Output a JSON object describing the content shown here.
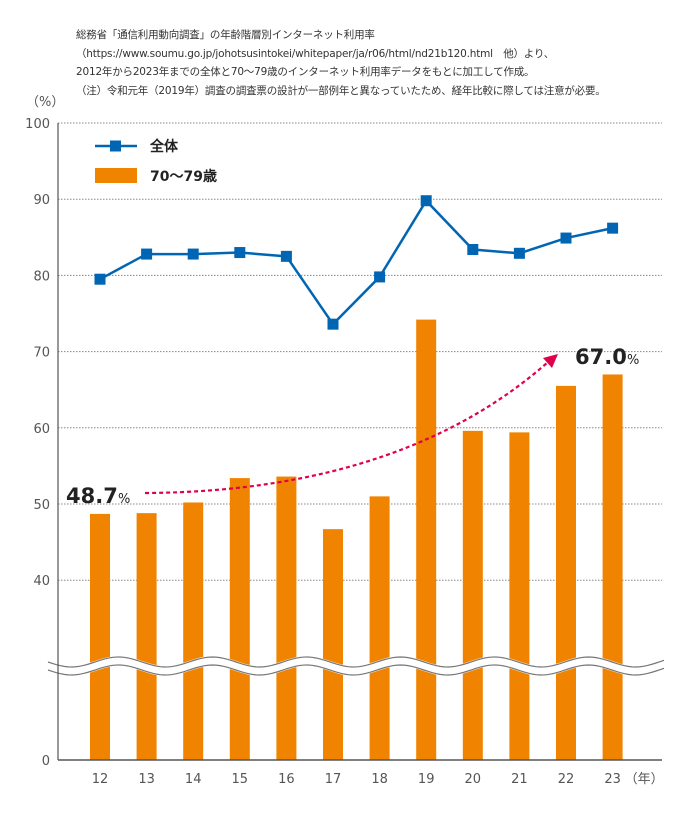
{
  "notes": [
    "総務省「通信利用動向調査」の年齢階層別インターネット利用率",
    "（https://www.soumu.go.jp/johotsusintokei/whitepaper/ja/r06/html/nd21b120.html　他）より、",
    "2012年から2023年までの全体と70～79歳のインターネット利用率データをもとに加工して作成。",
    "（注）令和元年（2019年）調査の調査票の設計が一部例年と異なっていたため、経年比較に際しては注意が必要。"
  ],
  "chart_data": {
    "type": "bar+line",
    "ylabel": "（%）",
    "xlabel_unit": "（年）",
    "categories": [
      "12",
      "13",
      "14",
      "15",
      "16",
      "17",
      "18",
      "19",
      "20",
      "21",
      "22",
      "23"
    ],
    "yticks": [
      "100",
      "90",
      "80",
      "70",
      "60",
      "50",
      "40",
      "0"
    ],
    "ylim": [
      0,
      100
    ],
    "axis_break": "between 0 and 40",
    "grid": "dotted horizontal",
    "legend_placement": "top-left",
    "series": [
      {
        "name": "全体",
        "type": "line",
        "color": "#0066b3",
        "marker": "square",
        "values": [
          79.5,
          82.8,
          82.8,
          83.0,
          82.5,
          73.6,
          79.8,
          89.8,
          83.4,
          82.9,
          84.9,
          86.2
        ]
      },
      {
        "name": "70〜79歳",
        "type": "bar",
        "color": "#f08300",
        "values": [
          48.7,
          48.8,
          50.2,
          53.4,
          53.6,
          46.7,
          51.0,
          74.2,
          59.6,
          59.4,
          65.5,
          67.0
        ]
      }
    ],
    "annotations": [
      {
        "value": "48.7",
        "unit": "%",
        "category": "12"
      },
      {
        "value": "67.0",
        "unit": "%",
        "category": "23"
      }
    ],
    "trend_arrow_color": "#e0004d"
  }
}
